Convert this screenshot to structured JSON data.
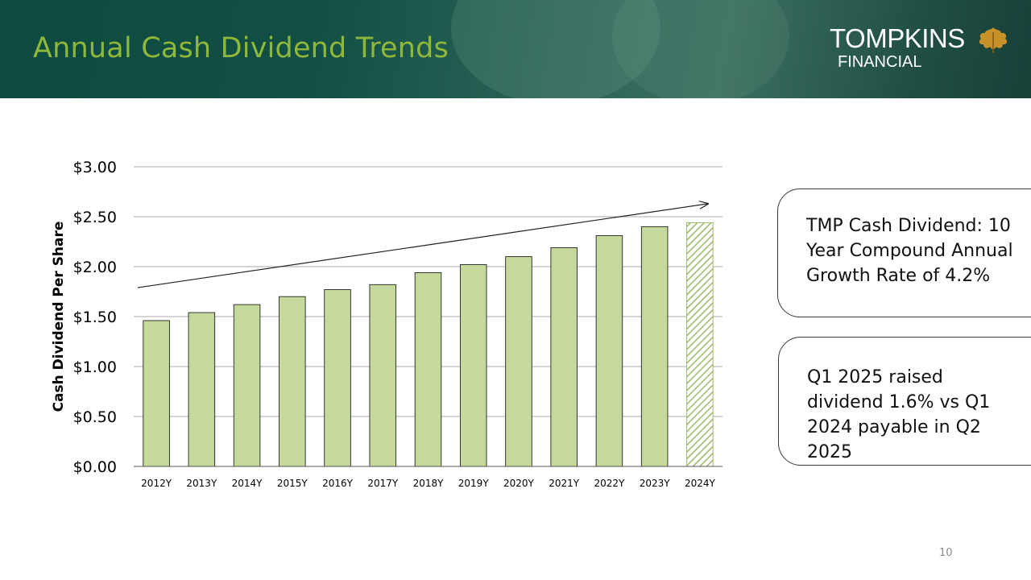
{
  "header": {
    "title": "Annual Cash Dividend Trends",
    "logo_main": "TOMPKINS",
    "logo_sub": "FINANCIAL"
  },
  "colors": {
    "title": "#8fb83a",
    "bar_fill": "#c5d99c",
    "bar_stroke": "#222222",
    "header_bg": "#124f44"
  },
  "callouts": {
    "cagr": "TMP Cash Dividend: 10 Year Compound Annual Growth Rate of 4.2%",
    "q1": "Q1 2025 raised dividend 1.6% vs Q1 2024 payable in Q2 2025"
  },
  "page_number": "10",
  "chart_data": {
    "type": "bar",
    "title": "",
    "xlabel": "",
    "ylabel": "Cash Dividend Per Share",
    "categories": [
      "2012Y",
      "2013Y",
      "2014Y",
      "2015Y",
      "2016Y",
      "2017Y",
      "2018Y",
      "2019Y",
      "2020Y",
      "2021Y",
      "2022Y",
      "2023Y",
      "2024Y"
    ],
    "values": [
      1.46,
      1.54,
      1.62,
      1.7,
      1.77,
      1.82,
      1.94,
      2.02,
      2.1,
      2.19,
      2.31,
      2.4,
      2.44
    ],
    "hatched_categories": [
      "2024Y"
    ],
    "ylim": [
      0,
      3
    ],
    "yticks": [
      0,
      0.5,
      1.0,
      1.5,
      2.0,
      2.5,
      3.0
    ],
    "ytick_labels": [
      "$0.00",
      "$0.50",
      "$1.00",
      "$1.50",
      "$2.00",
      "$2.50",
      "$3.00"
    ],
    "grid": true,
    "trend_arrow": {
      "from": 1.79,
      "to": 2.63
    }
  }
}
